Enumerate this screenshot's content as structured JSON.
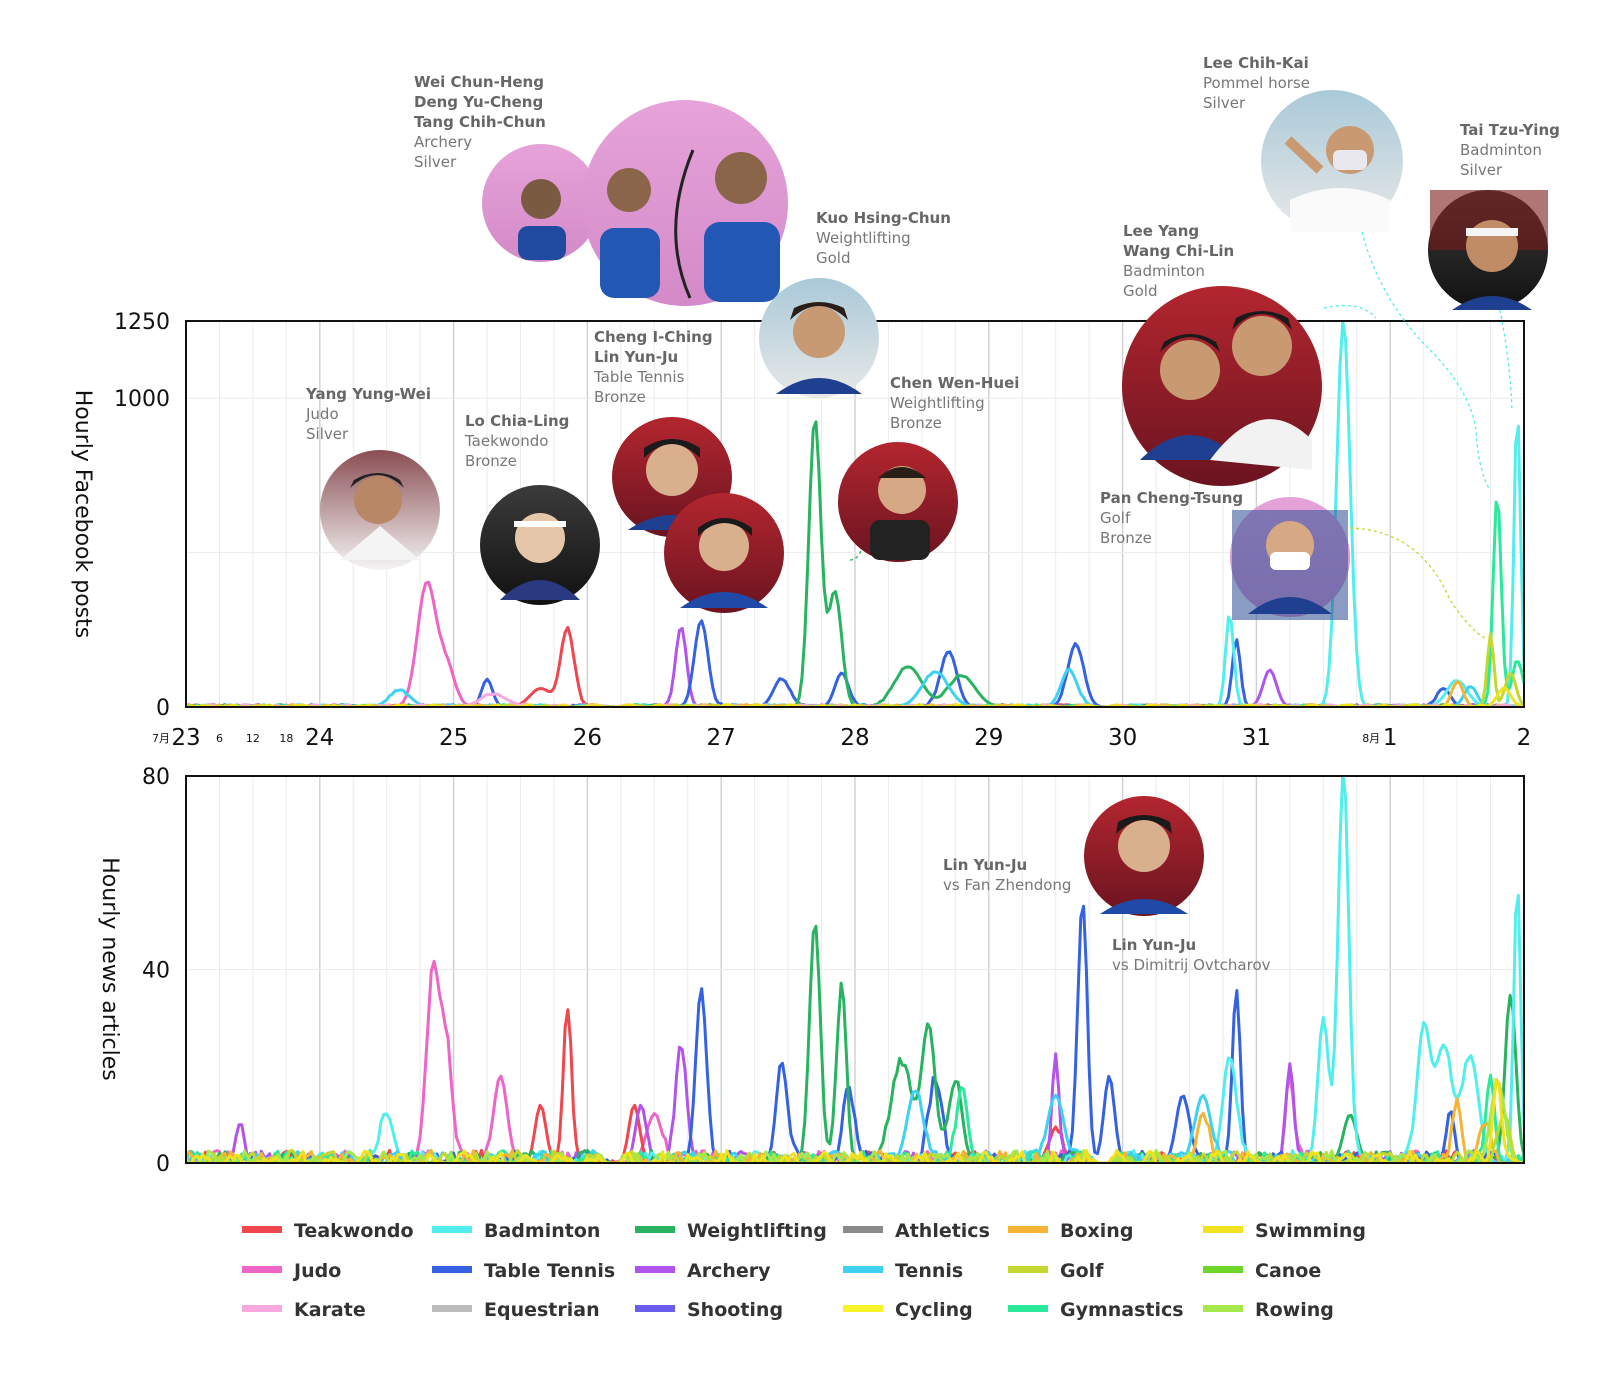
{
  "chart_data": [
    {
      "type": "line",
      "panel": "facebook",
      "ylabel": "Hourly Facebook posts",
      "ylim": [
        0,
        1250
      ],
      "yticks": [
        0,
        1000,
        1250
      ],
      "x_unit": "days (July 23 – Aug 2)",
      "xlim": [
        0,
        10
      ],
      "grid": true,
      "series": [
        {
          "name": "Judo",
          "peaks": [
            [
              1.8,
              400,
              0.07
            ],
            [
              1.95,
              120,
              0.06
            ]
          ]
        },
        {
          "name": "Teakwondo",
          "peaks": [
            [
              2.85,
              250,
              0.05
            ],
            [
              2.65,
              60,
              0.08
            ]
          ]
        },
        {
          "name": "Archery",
          "peaks": [
            [
              3.7,
              260,
              0.04
            ],
            [
              8.1,
              120,
              0.05
            ]
          ]
        },
        {
          "name": "Table Tennis",
          "peaks": [
            [
              2.25,
              90,
              0.04
            ],
            [
              3.85,
              280,
              0.05
            ],
            [
              4.45,
              90,
              0.06
            ],
            [
              4.9,
              110,
              0.05
            ],
            [
              5.7,
              180,
              0.06
            ],
            [
              6.65,
              200,
              0.06
            ],
            [
              7.85,
              220,
              0.03
            ],
            [
              9.4,
              60,
              0.05
            ]
          ]
        },
        {
          "name": "Weightlifting",
          "peaks": [
            [
              4.7,
              930,
              0.045
            ],
            [
              4.85,
              370,
              0.05
            ],
            [
              5.4,
              130,
              0.1
            ],
            [
              5.8,
              100,
              0.1
            ]
          ]
        },
        {
          "name": "Badminton",
          "peaks": [
            [
              7.8,
              300,
              0.03
            ],
            [
              8.65,
              1250,
              0.05
            ],
            [
              9.95,
              960,
              0.025
            ],
            [
              9.5,
              80,
              0.08
            ]
          ]
        },
        {
          "name": "Tennis",
          "peaks": [
            [
              1.6,
              50,
              0.08
            ],
            [
              5.6,
              110,
              0.1
            ],
            [
              6.6,
              120,
              0.06
            ],
            [
              9.6,
              60,
              0.05
            ]
          ]
        },
        {
          "name": "Gymnastics",
          "peaks": [
            [
              9.8,
              690,
              0.03
            ],
            [
              9.95,
              150,
              0.04
            ]
          ]
        },
        {
          "name": "Golf",
          "peaks": [
            [
              9.75,
              230,
              0.025
            ],
            [
              9.9,
              110,
              0.04
            ]
          ]
        },
        {
          "name": "Boxing",
          "peaks": [
            [
              9.5,
              80,
              0.04
            ]
          ]
        },
        {
          "name": "Karate",
          "peaks": [
            [
              2.3,
              40,
              0.1
            ]
          ]
        },
        {
          "name": "Swimming",
          "peaks": [
            [
              9.85,
              60,
              0.05
            ]
          ]
        }
      ],
      "annotations": [
        {
          "lines": [
            "Wei Chun-Heng",
            "Deng Yu-Cheng",
            "Tang Chih-Chun",
            "Archery",
            "Silver"
          ]
        },
        {
          "lines": [
            "Yang Yung-Wei",
            "Judo",
            "Silver"
          ]
        },
        {
          "lines": [
            "Lo Chia-Ling",
            "Taekwondo",
            "Bronze"
          ]
        },
        {
          "lines": [
            "Cheng I-Ching",
            "Lin Yun-Ju",
            "Table Tennis",
            "Bronze"
          ]
        },
        {
          "lines": [
            "Kuo Hsing-Chun",
            "Weightlifting",
            "Gold"
          ]
        },
        {
          "lines": [
            "Chen Wen-Huei",
            "Weightlifting",
            "Bronze"
          ]
        },
        {
          "lines": [
            "Lee Yang",
            "Wang Chi-Lin",
            "Badminton",
            "Gold"
          ]
        },
        {
          "lines": [
            "Pan Cheng-Tsung",
            "Golf",
            "Bronze"
          ]
        },
        {
          "lines": [
            "Lee Chih-Kai",
            "Pommel horse",
            "Silver"
          ]
        },
        {
          "lines": [
            "Tai Tzu-Ying",
            "Badminton",
            "Silver"
          ]
        }
      ]
    },
    {
      "type": "line",
      "panel": "news",
      "ylabel": "Hourly news articles",
      "ylim": [
        0,
        80
      ],
      "yticks": [
        0,
        40,
        80
      ],
      "xlim": [
        0,
        10
      ],
      "grid": true,
      "series": [
        {
          "name": "Judo",
          "peaks": [
            [
              1.85,
              40,
              0.05
            ],
            [
              1.95,
              20,
              0.04
            ],
            [
              2.35,
              18,
              0.05
            ],
            [
              3.5,
              10,
              0.06
            ],
            [
              8.25,
              18,
              0.03
            ]
          ]
        },
        {
          "name": "Teakwondo",
          "peaks": [
            [
              2.85,
              32,
              0.03
            ],
            [
              2.65,
              12,
              0.04
            ],
            [
              3.35,
              12,
              0.04
            ],
            [
              6.5,
              6,
              0.05
            ]
          ]
        },
        {
          "name": "Archery",
          "peaks": [
            [
              0.4,
              8,
              0.03
            ],
            [
              3.7,
              24,
              0.04
            ],
            [
              3.4,
              12,
              0.04
            ],
            [
              6.5,
              22,
              0.025
            ],
            [
              8.25,
              20,
              0.03
            ]
          ]
        },
        {
          "name": "Table Tennis",
          "peaks": [
            [
              3.85,
              36,
              0.04
            ],
            [
              4.45,
              20,
              0.04
            ],
            [
              4.95,
              16,
              0.04
            ],
            [
              5.6,
              16,
              0.05
            ],
            [
              6.7,
              54,
              0.035
            ],
            [
              6.9,
              18,
              0.04
            ],
            [
              7.45,
              14,
              0.05
            ],
            [
              7.85,
              36,
              0.03
            ],
            [
              9.45,
              11,
              0.03
            ]
          ]
        },
        {
          "name": "Weightlifting",
          "peaks": [
            [
              4.7,
              50,
              0.04
            ],
            [
              4.9,
              36,
              0.035
            ],
            [
              5.35,
              20,
              0.08
            ],
            [
              5.55,
              28,
              0.05
            ],
            [
              5.75,
              16,
              0.05
            ],
            [
              8.7,
              10,
              0.05
            ],
            [
              9.9,
              33,
              0.04
            ]
          ]
        },
        {
          "name": "Badminton",
          "peaks": [
            [
              1.5,
              10,
              0.05
            ],
            [
              7.8,
              22,
              0.05
            ],
            [
              8.65,
              80,
              0.04
            ],
            [
              8.5,
              30,
              0.04
            ],
            [
              9.25,
              28,
              0.05
            ],
            [
              9.4,
              24,
              0.06
            ],
            [
              9.6,
              22,
              0.06
            ],
            [
              9.95,
              58,
              0.025
            ]
          ]
        },
        {
          "name": "Tennis",
          "peaks": [
            [
              5.45,
              15,
              0.06
            ],
            [
              6.5,
              14,
              0.06
            ],
            [
              7.6,
              14,
              0.06
            ]
          ]
        },
        {
          "name": "Gymnastics",
          "peaks": [
            [
              5.8,
              16,
              0.04
            ],
            [
              9.75,
              18,
              0.03
            ]
          ]
        },
        {
          "name": "Boxing",
          "peaks": [
            [
              7.6,
              10,
              0.04
            ],
            [
              9.5,
              13,
              0.03
            ],
            [
              9.7,
              8,
              0.04
            ]
          ]
        },
        {
          "name": "Golf",
          "peaks": [
            [
              9.85,
              10,
              0.04
            ]
          ]
        },
        {
          "name": "Rowing",
          "peaks": [
            [
              9.8,
              16,
              0.05
            ]
          ]
        },
        {
          "name": "Swimming",
          "peaks": [
            [
              9.8,
              18,
              0.03
            ]
          ]
        }
      ],
      "annotations": [
        {
          "lines": [
            "Lin Yun-Ju",
            "vs Fan Zhendong"
          ]
        },
        {
          "lines": [
            "Lin Yun-Ju",
            "vs Dimitrij Ovtcharov"
          ]
        }
      ]
    }
  ],
  "colors": {
    "Teakwondo": "#f0474f",
    "Badminton": "#52eeee",
    "Weightlifting": "#27b35f",
    "Athletics": "#8a8a8a",
    "Boxing": "#f6b436",
    "Swimming": "#f0e21e",
    "Judo": "#ee64c7",
    "Table Tennis": "#3561e3",
    "Archery": "#b154ec",
    "Tennis": "#3ed1f2",
    "Golf": "#c2d82e",
    "Canoe": "#6cd62a",
    "Karate": "#f7a8df",
    "Equestrian": "#bcbcbc",
    "Shooting": "#6b5cf0",
    "Cycling": "#f8f229",
    "Gymnastics": "#2be99a",
    "Rowing": "#a6e84c"
  },
  "x_axis": {
    "month_jul": "7月",
    "month_aug": "8月",
    "days": [
      "23",
      "24",
      "25",
      "26",
      "27",
      "28",
      "29",
      "30",
      "31",
      "1",
      "2"
    ],
    "hours": [
      "6",
      "12",
      "18"
    ]
  },
  "legend": [
    "Teakwondo",
    "Badminton",
    "Weightlifting",
    "Athletics",
    "Boxing",
    "Swimming",
    "Judo",
    "Table Tennis",
    "Archery",
    "Tennis",
    "Golf",
    "Canoe",
    "Karate",
    "Equestrian",
    "Shooting",
    "Cycling",
    "Gymnastics",
    "Rowing"
  ],
  "photo_icons": [
    "archery-team-photo",
    "judo-photo",
    "taekwondo-photo",
    "table-tennis-photo-1",
    "table-tennis-photo-2",
    "weightlifting-photo-1",
    "weightlifting-photo-2",
    "badminton-doubles-photo",
    "golf-photo",
    "gymnastics-photo",
    "badminton-singles-photo",
    "table-tennis-news-photo"
  ]
}
